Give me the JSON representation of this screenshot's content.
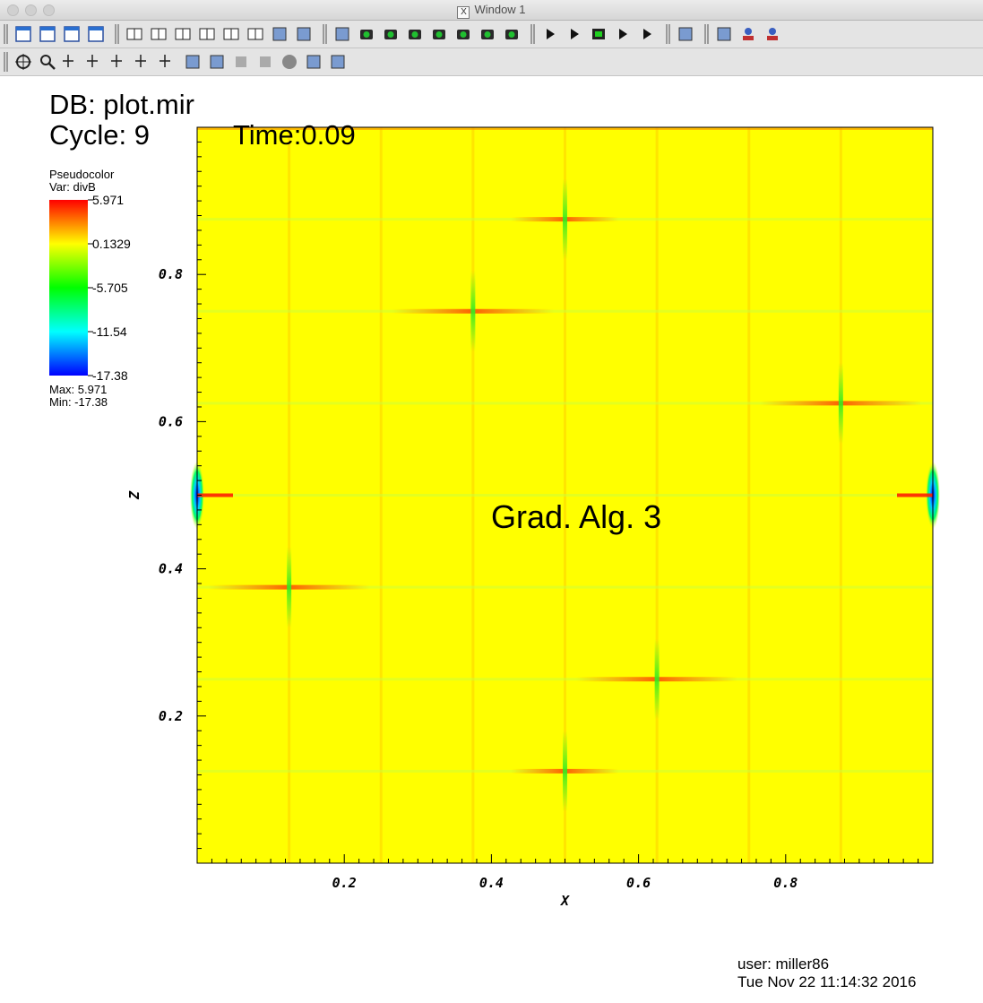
{
  "window": {
    "title": "Window 1"
  },
  "toolbar1": {
    "icons": [
      "active-window-icon",
      "new-window-icon",
      "clone-window-icon",
      "delete-window-icon",
      "layout-1x1-icon",
      "layout-1x2-icon",
      "layout-2x2-icon",
      "layout-2x3-icon",
      "layout-3x2-icon",
      "layout-3x3-icon",
      "spin-mode-icon",
      "invert-background-icon",
      "perspective-icon",
      "view-reset-icon",
      "recenter-icon",
      "undo-view-icon",
      "redo-view-icon",
      "save-view-icon",
      "choose-view-icon",
      "lock-view-icon",
      "rewind-icon",
      "reverse-play-icon",
      "stop-icon",
      "play-icon",
      "step-forward-icon",
      "swap-colors-icon",
      "lighting-icon",
      "lock-time-icon",
      "lock-tools-icon"
    ]
  },
  "toolbar2": {
    "icons": [
      "navigate-icon",
      "zoom-icon",
      "zone-pick-icon",
      "node-pick-icon",
      "spreadsheet-pick-icon",
      "domain-pick-icon",
      "curve-pick-icon",
      "lineout-icon",
      "line-tool-icon",
      "plane-tool-icon",
      "box-tool-icon",
      "sphere-tool-icon",
      "axis-restrict-icon",
      "point-tool-icon"
    ]
  },
  "annotation": {
    "db": "DB: plot.mir",
    "cycle": "Cycle: 9",
    "time": "Time:0.09",
    "label": "Grad. Alg. 3"
  },
  "legend": {
    "title": "Pseudocolor",
    "var": "Var: divB",
    "ticks": [
      "5.971",
      "0.1329",
      "-5.705",
      "-11.54",
      "-17.38"
    ],
    "max": "Max:  5.971",
    "min": "Min: -17.38"
  },
  "colors": {
    "field": "#ffff00",
    "accent_red": "#ff2000",
    "accent_green": "#30ff20"
  },
  "chart_data": {
    "type": "heatmap",
    "title": "",
    "xlabel": "X",
    "ylabel": "Z",
    "xlim": [
      0.0,
      1.0
    ],
    "ylim": [
      0.0,
      1.0
    ],
    "x_ticks": [
      "0.2",
      "0.4",
      "0.6",
      "0.8"
    ],
    "y_ticks": [
      "0.2",
      "0.4",
      "0.6",
      "0.8"
    ],
    "variable": "divB",
    "value_range": [
      -17.38,
      5.971
    ],
    "grid_lines_x": [
      0.125,
      0.25,
      0.375,
      0.5,
      0.625,
      0.75,
      0.875
    ],
    "grid_lines_z": [
      0.125,
      0.25,
      0.375,
      0.5,
      0.625,
      0.75,
      0.875
    ],
    "hotspots": [
      {
        "x": 0.0,
        "z": 0.5,
        "value": -17.38
      },
      {
        "x": 1.0,
        "z": 0.5,
        "value": -17.38
      },
      {
        "x": 0.375,
        "z": 0.75,
        "value": 4.5
      },
      {
        "x": 0.875,
        "z": 0.625,
        "value": 4.5
      },
      {
        "x": 0.125,
        "z": 0.375,
        "value": 4.5
      },
      {
        "x": 0.625,
        "z": 0.25,
        "value": 4.5
      },
      {
        "x": 0.5,
        "z": 0.875,
        "value": 3.0
      },
      {
        "x": 0.5,
        "z": 0.125,
        "value": 3.0
      }
    ]
  },
  "footer": {
    "user": "user: miller86",
    "date": "Tue Nov 22 11:14:32 2016"
  }
}
